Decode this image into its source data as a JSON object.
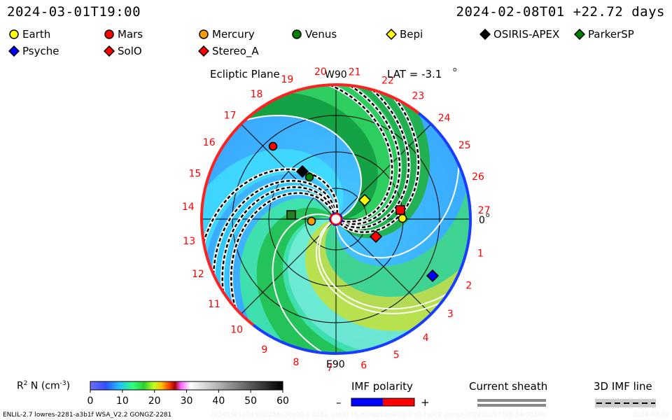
{
  "header": {
    "left_timestamp": "2024-03-01T19:00",
    "right_timestamp": "2024-02-08T01 +22.72 days"
  },
  "legend": [
    {
      "name": "Earth",
      "shape": "circle",
      "color": "#ffff00"
    },
    {
      "name": "Mars",
      "shape": "circle",
      "color": "#ff0000"
    },
    {
      "name": "Mercury",
      "shape": "circle",
      "color": "#ff9900"
    },
    {
      "name": "Venus",
      "shape": "circle",
      "color": "#008000"
    },
    {
      "name": "Bepi",
      "shape": "diamond",
      "color": "#ffff00"
    },
    {
      "name": "OSIRIS-APEX",
      "shape": "diamond",
      "color": "#000000"
    },
    {
      "name": "ParkerSP",
      "shape": "diamond",
      "color": "#008000"
    },
    {
      "name": "Psyche",
      "shape": "diamond",
      "color": "#0000ff"
    },
    {
      "name": "SolO",
      "shape": "diamond",
      "color": "#ff0000"
    },
    {
      "name": "Stereo_A",
      "shape": "diamond",
      "color": "#ff0000"
    }
  ],
  "plot": {
    "title": "Ecliptic Plane",
    "top_label": "W90",
    "bottom_label": "E90",
    "right_label": "0",
    "right_label_sup": "o",
    "lat_label": "LAT = -3.1",
    "lat_sup": "o",
    "carrington_ticks": [
      "1",
      "2",
      "3",
      "4",
      "5",
      "6",
      "7",
      "8",
      "9",
      "10",
      "11",
      "12",
      "13",
      "14",
      "15",
      "16",
      "17",
      "18",
      "19",
      "20",
      "21",
      "22",
      "23",
      "24",
      "25",
      "26",
      "27"
    ]
  },
  "colorbar": {
    "label": "R",
    "label_sup": "2",
    "label_rest": " N (cm",
    "label_unit_sup": "-3",
    "label_end": ")",
    "ticks": [
      "0",
      "10",
      "20",
      "30",
      "40",
      "50",
      "60"
    ]
  },
  "imf": {
    "title": "IMF polarity",
    "minus": "–",
    "plus": "+",
    "neg_color": "#0000ff",
    "pos_color": "#ff0000"
  },
  "sheath": {
    "title": "Current sheath"
  },
  "imf3d": {
    "title": "3D IMF line"
  },
  "footer": {
    "left": "ENLIL-2.7 lowres-2281-a3b1f WSA_V2.2 GONGZ-2281",
    "mid": "20240301214502/256x30x90-1 2281-a3b1f 16-hloop/tumetcs-1 g53qdc2 gongz-2024/01/17T06:54:00100",
    "right": "2024-03-01"
  }
}
